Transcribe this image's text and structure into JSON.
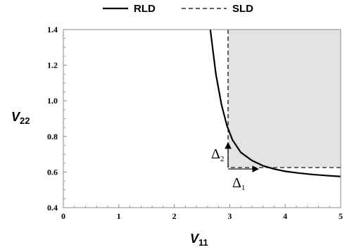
{
  "chart_data": {
    "type": "line",
    "title": "",
    "xlabel": "V",
    "xlabel_sub": "11",
    "ylabel": "V",
    "ylabel_sub": "22",
    "xlim": [
      0,
      5
    ],
    "ylim": [
      0.4,
      1.4
    ],
    "x_ticks": [
      0,
      1,
      2,
      3,
      4,
      5
    ],
    "y_ticks": [
      0.4,
      0.6,
      0.8,
      1.0,
      1.2,
      1.4
    ],
    "x_tick_labels": [
      "0",
      "1",
      "2",
      "3",
      "4",
      "5"
    ],
    "y_tick_labels": [
      "0.4",
      "0.6",
      "0.8",
      "1.0",
      "1.2",
      "1.4"
    ],
    "legend_position": "top-center",
    "grid": false,
    "series": [
      {
        "name": "RLD",
        "style": "solid",
        "color": "#000000",
        "x": [
          2.65,
          2.75,
          2.85,
          2.95,
          3.05,
          3.2,
          3.4,
          3.6,
          3.8,
          4.0,
          4.25,
          4.5,
          4.75,
          5.0
        ],
        "y": [
          1.4,
          1.15,
          0.98,
          0.86,
          0.78,
          0.71,
          0.665,
          0.635,
          0.617,
          0.604,
          0.594,
          0.586,
          0.58,
          0.575
        ]
      },
      {
        "name": "SLD",
        "style": "dashed",
        "color": "#000000",
        "boundary_x": 2.97,
        "boundary_y": 0.625,
        "shaded_region": {
          "x": [
            2.97,
            5.0
          ],
          "y": [
            0.625,
            1.4
          ],
          "color": "#e3e3e3"
        }
      }
    ],
    "annotations": [
      {
        "symbol": "Δ",
        "sub": "2",
        "direction": "up",
        "x": 2.97,
        "y_from": 0.625,
        "y_to": 0.775
      },
      {
        "symbol": "Δ",
        "sub": "1",
        "direction": "right",
        "y": 0.625,
        "x_from": 2.97,
        "x_to": 3.55
      }
    ]
  }
}
